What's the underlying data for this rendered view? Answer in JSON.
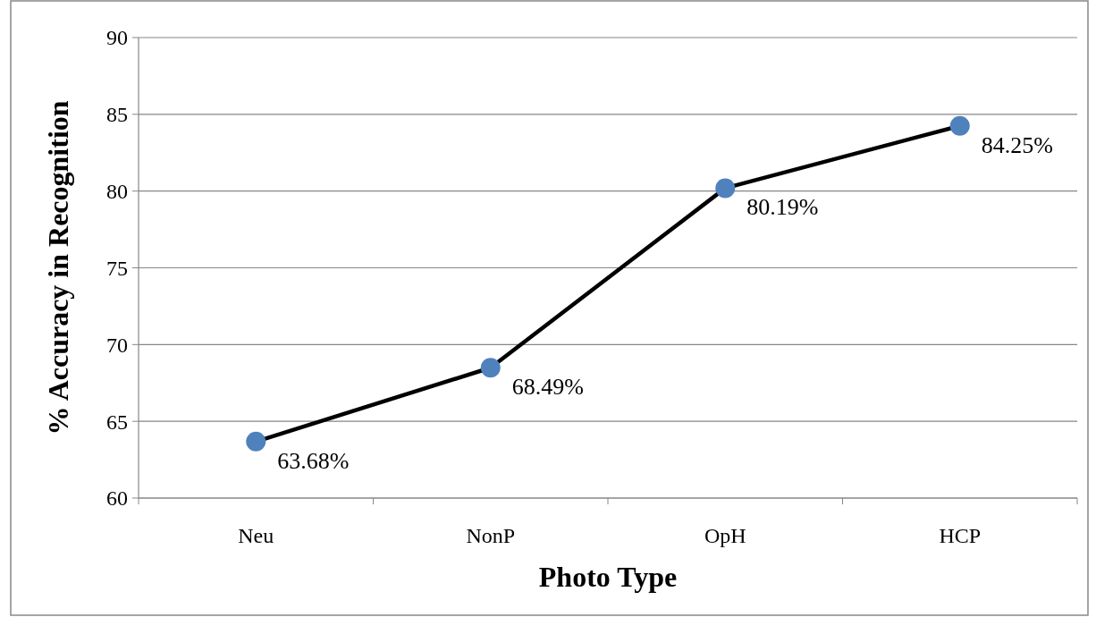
{
  "chart_data": {
    "type": "line",
    "xlabel": "Photo Type",
    "ylabel": "% Accuracy in Recognition",
    "categories": [
      "Neu",
      "NonP",
      "OpH",
      "HCP"
    ],
    "series": [
      {
        "color": "#4f81bd",
        "values": [
          63.68,
          68.49,
          80.19,
          84.25
        ]
      }
    ],
    "ylim": [
      60,
      90
    ],
    "yticks": [
      60,
      65,
      70,
      75,
      80,
      85,
      90
    ],
    "grid": "y",
    "marker": "circle",
    "line_style": "solid",
    "value_labels": [
      "63.68%",
      "68.49%",
      "80.19%",
      "84.25%"
    ]
  }
}
